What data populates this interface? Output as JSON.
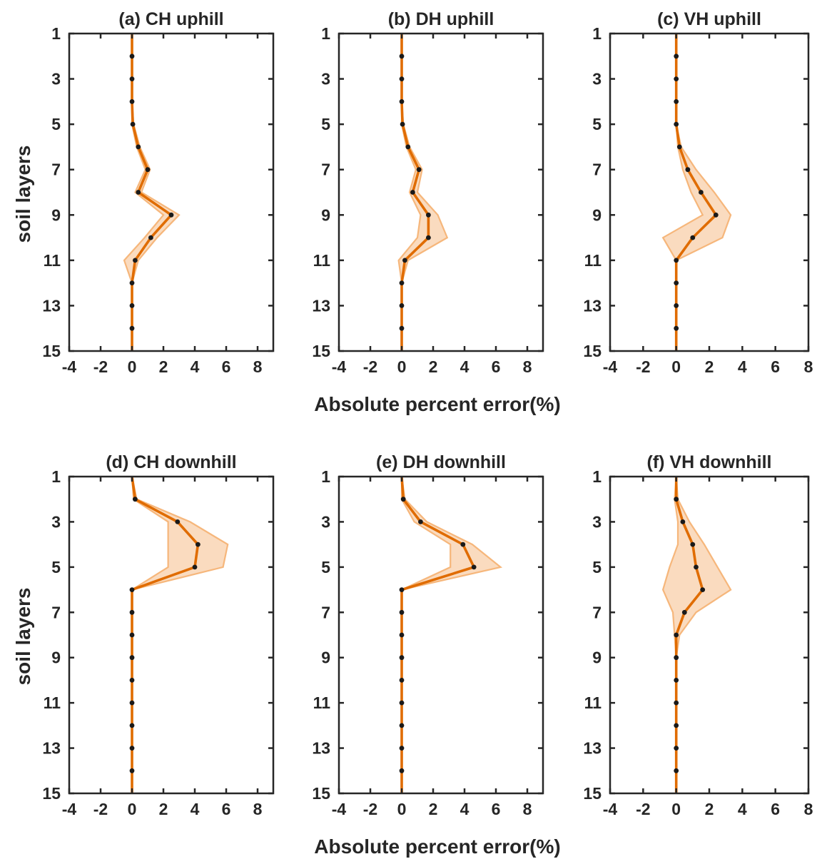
{
  "colors": {
    "line": "#e06c00",
    "band": "#f5b070",
    "band_opacity": 0.45,
    "marker": "#1a1a1a",
    "axis": "#262626",
    "text": "#262626"
  },
  "axes_text": {
    "xlabel_top": "Absolute percent error(%)",
    "xlabel_bottom": "Absolute percent error(%)",
    "ylabel_top": "soil layers",
    "ylabel_bottom": "soil layers"
  },
  "chart_data": [
    {
      "type": "line",
      "title": "(a) CH uphill",
      "xlim": [
        -4,
        9
      ],
      "ylim": [
        1,
        15
      ],
      "y_reversed": true,
      "x_ticks": [
        -4,
        -2,
        0,
        2,
        4,
        6,
        8
      ],
      "y_ticks": [
        1,
        3,
        5,
        7,
        9,
        11,
        13,
        15
      ],
      "y": [
        1,
        2,
        3,
        4,
        5,
        6,
        7,
        8,
        9,
        10,
        11,
        12,
        13,
        14,
        15
      ],
      "x": [
        0,
        0,
        0,
        0,
        0.05,
        0.4,
        1.0,
        0.4,
        2.5,
        1.2,
        0.2,
        0,
        0,
        0,
        0
      ],
      "lower": [
        0,
        0,
        0,
        0,
        0,
        0.3,
        0.85,
        0.2,
        2.0,
        0.8,
        -0.5,
        0,
        0,
        0,
        0
      ],
      "upper": [
        0,
        0,
        0,
        0,
        0.1,
        0.5,
        1.15,
        0.6,
        3.0,
        1.6,
        0.4,
        0,
        0,
        0,
        0
      ]
    },
    {
      "type": "line",
      "title": "(b) DH uphill",
      "xlim": [
        -4,
        9
      ],
      "ylim": [
        1,
        15
      ],
      "y_reversed": true,
      "x_ticks": [
        -4,
        -2,
        0,
        2,
        4,
        6,
        8
      ],
      "y_ticks": [
        1,
        3,
        5,
        7,
        9,
        11,
        13,
        15
      ],
      "y": [
        1,
        2,
        3,
        4,
        5,
        6,
        7,
        8,
        9,
        10,
        11,
        12,
        13,
        14,
        15
      ],
      "x": [
        0,
        0,
        0,
        0,
        0.05,
        0.4,
        1.1,
        0.7,
        1.7,
        1.7,
        0.2,
        0,
        0,
        0,
        0
      ],
      "lower": [
        0,
        0,
        0,
        0,
        0,
        0.3,
        0.9,
        0.5,
        1.2,
        1.0,
        -0.2,
        0,
        0,
        0,
        0
      ],
      "upper": [
        0,
        0,
        0,
        0,
        0.1,
        0.5,
        1.3,
        1.0,
        2.3,
        2.9,
        0.4,
        0,
        0,
        0,
        0
      ]
    },
    {
      "type": "line",
      "title": "(c) VH uphill",
      "xlim": [
        -4,
        8
      ],
      "ylim": [
        1,
        15
      ],
      "y_reversed": true,
      "x_ticks": [
        -4,
        -2,
        0,
        2,
        4,
        6,
        8
      ],
      "y_ticks": [
        1,
        3,
        5,
        7,
        9,
        11,
        13,
        15
      ],
      "y": [
        1,
        2,
        3,
        4,
        5,
        6,
        7,
        8,
        9,
        10,
        11,
        12,
        13,
        14,
        15
      ],
      "x": [
        0,
        0,
        0,
        0,
        0,
        0.2,
        0.7,
        1.5,
        2.4,
        1.0,
        0,
        0,
        0,
        0,
        0
      ],
      "lower": [
        0,
        0,
        0,
        0,
        0,
        0.1,
        0.4,
        0.9,
        1.6,
        -0.8,
        0,
        0,
        0,
        0,
        0
      ],
      "upper": [
        0,
        0,
        0,
        0,
        0,
        0.3,
        1.2,
        2.3,
        3.3,
        2.8,
        0,
        0,
        0,
        0,
        0
      ]
    },
    {
      "type": "line",
      "title": "(d) CH downhill",
      "xlim": [
        -4,
        9
      ],
      "ylim": [
        1,
        15
      ],
      "y_reversed": true,
      "x_ticks": [
        -4,
        -2,
        0,
        2,
        4,
        6,
        8
      ],
      "y_ticks": [
        1,
        3,
        5,
        7,
        9,
        11,
        13,
        15
      ],
      "y": [
        1,
        2,
        3,
        4,
        5,
        6,
        7,
        8,
        9,
        10,
        11,
        12,
        13,
        14,
        15
      ],
      "x": [
        0,
        0.2,
        2.9,
        4.2,
        4.0,
        0,
        0,
        0,
        0,
        0,
        0,
        0,
        0,
        0,
        0
      ],
      "lower": [
        0,
        0.1,
        2.3,
        2.3,
        2.3,
        0,
        0,
        0,
        0,
        0,
        0,
        0,
        0,
        0,
        0
      ],
      "upper": [
        0,
        0.3,
        3.7,
        6.1,
        5.8,
        0,
        0,
        0,
        0,
        0,
        0,
        0,
        0,
        0,
        0
      ]
    },
    {
      "type": "line",
      "title": "(e) DH downhill",
      "xlim": [
        -4,
        9
      ],
      "ylim": [
        1,
        15
      ],
      "y_reversed": true,
      "x_ticks": [
        -4,
        -2,
        0,
        2,
        4,
        6,
        8
      ],
      "y_ticks": [
        1,
        3,
        5,
        7,
        9,
        11,
        13,
        15
      ],
      "y": [
        1,
        2,
        3,
        4,
        5,
        6,
        7,
        8,
        9,
        10,
        11,
        12,
        13,
        14,
        15
      ],
      "x": [
        0,
        0.1,
        1.2,
        3.9,
        4.6,
        0,
        0,
        0,
        0,
        0,
        0,
        0,
        0,
        0,
        0
      ],
      "lower": [
        0,
        0,
        0.8,
        3.1,
        3.1,
        0,
        0,
        0,
        0,
        0,
        0,
        0,
        0,
        0,
        0
      ],
      "upper": [
        0,
        0.2,
        1.6,
        4.5,
        6.3,
        0,
        0,
        0,
        0,
        0,
        0,
        0,
        0,
        0,
        0
      ]
    },
    {
      "type": "line",
      "title": "(f) VH downhill",
      "xlim": [
        -4,
        8
      ],
      "ylim": [
        1,
        15
      ],
      "y_reversed": true,
      "x_ticks": [
        -4,
        -2,
        0,
        2,
        4,
        6,
        8
      ],
      "y_ticks": [
        1,
        3,
        5,
        7,
        9,
        11,
        13,
        15
      ],
      "y": [
        1,
        2,
        3,
        4,
        5,
        6,
        7,
        8,
        9,
        10,
        11,
        12,
        13,
        14,
        15
      ],
      "x": [
        0,
        0,
        0.4,
        1.0,
        1.2,
        1.6,
        0.5,
        0,
        0,
        0,
        0,
        0,
        0,
        0,
        0
      ],
      "lower": [
        0,
        -0.1,
        0.1,
        0.1,
        -0.4,
        -0.8,
        -0.2,
        -0.1,
        0,
        0,
        0,
        0,
        0,
        0,
        0
      ],
      "upper": [
        0,
        0.1,
        0.8,
        1.7,
        2.5,
        3.3,
        1.2,
        0.2,
        0,
        0,
        0,
        0,
        0,
        0,
        0
      ]
    }
  ]
}
